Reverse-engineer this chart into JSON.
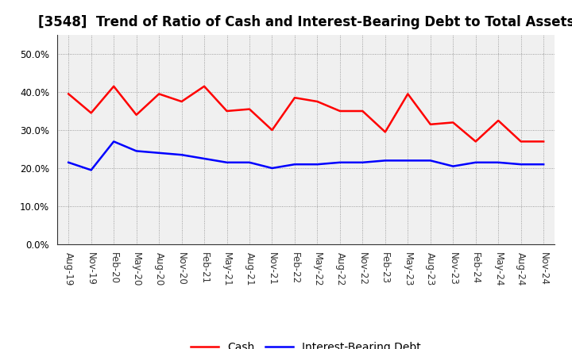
{
  "title": "[3548]  Trend of Ratio of Cash and Interest-Bearing Debt to Total Assets",
  "x_labels": [
    "Aug-19",
    "Nov-19",
    "Feb-20",
    "May-20",
    "Aug-20",
    "Nov-20",
    "Feb-21",
    "May-21",
    "Aug-21",
    "Nov-21",
    "Feb-22",
    "May-22",
    "Aug-22",
    "Nov-22",
    "Feb-23",
    "May-23",
    "Aug-23",
    "Nov-23",
    "Feb-24",
    "May-24",
    "Aug-24",
    "Nov-24"
  ],
  "cash": [
    39.5,
    34.5,
    41.5,
    34.0,
    39.5,
    37.5,
    41.5,
    35.0,
    35.5,
    30.0,
    38.5,
    37.5,
    35.0,
    35.0,
    29.5,
    39.5,
    31.5,
    32.0,
    27.0,
    32.5,
    27.0,
    27.0
  ],
  "ibd": [
    21.5,
    19.5,
    27.0,
    24.5,
    24.0,
    23.5,
    22.5,
    21.5,
    21.5,
    20.0,
    21.0,
    21.0,
    21.5,
    21.5,
    22.0,
    22.0,
    22.0,
    20.5,
    21.5,
    21.5,
    21.0,
    21.0
  ],
  "cash_color": "#ff0000",
  "ibd_color": "#0000ff",
  "ylim": [
    0,
    55
  ],
  "yticks": [
    0,
    10,
    20,
    30,
    40,
    50
  ],
  "background_color": "#ffffff",
  "plot_bg_color": "#f0f0f0",
  "grid_color": "#888888",
  "legend_cash": "Cash",
  "legend_ibd": "Interest-Bearing Debt",
  "title_fontsize": 12,
  "tick_fontsize": 8.5,
  "linewidth": 1.8
}
